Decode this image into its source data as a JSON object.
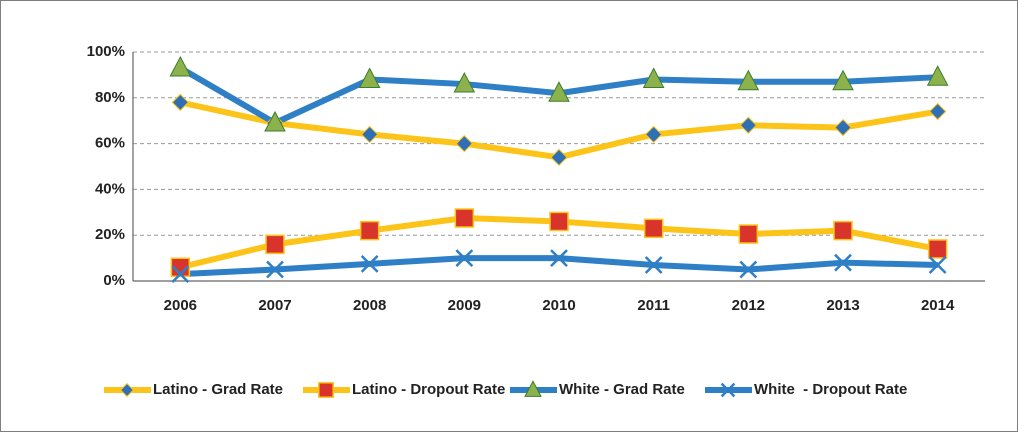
{
  "chart_data": {
    "type": "line",
    "categories": [
      "2006",
      "2007",
      "2008",
      "2009",
      "2010",
      "2011",
      "2012",
      "2013",
      "2014"
    ],
    "series": [
      {
        "name": "Latino - Grad Rate",
        "color": "#fcc419",
        "marker": "diamond",
        "marker_color": "#2f6fb5",
        "values": [
          78,
          69,
          64,
          60,
          54,
          64,
          68,
          67,
          74
        ]
      },
      {
        "name": "Latino - Dropout Rate",
        "color": "#fcc419",
        "marker": "square",
        "marker_color": "#d9342b",
        "values": [
          6,
          16,
          22,
          27.5,
          26,
          23,
          20.5,
          22,
          14
        ]
      },
      {
        "name": "White - Grad Rate",
        "color": "#2f7fc6",
        "marker": "triangle",
        "marker_color": "#8db14c",
        "values": [
          93,
          69,
          88,
          86,
          82,
          88,
          87,
          87,
          89
        ]
      },
      {
        "name": "White  - Dropout Rate",
        "color": "#2f7fc6",
        "marker": "x",
        "marker_color": "#2f7fc6",
        "values": [
          3,
          5,
          7.5,
          10,
          10,
          7,
          5,
          8,
          7
        ]
      }
    ],
    "ylim": [
      0,
      100
    ],
    "yticks": [
      {
        "value": 0,
        "label": "0%"
      },
      {
        "value": 20,
        "label": "20%"
      },
      {
        "value": 40,
        "label": "40%"
      },
      {
        "value": 60,
        "label": "60%"
      },
      {
        "value": 80,
        "label": "80%"
      },
      {
        "value": 100,
        "label": "100%"
      }
    ],
    "grid": true,
    "legend": "bottom"
  }
}
